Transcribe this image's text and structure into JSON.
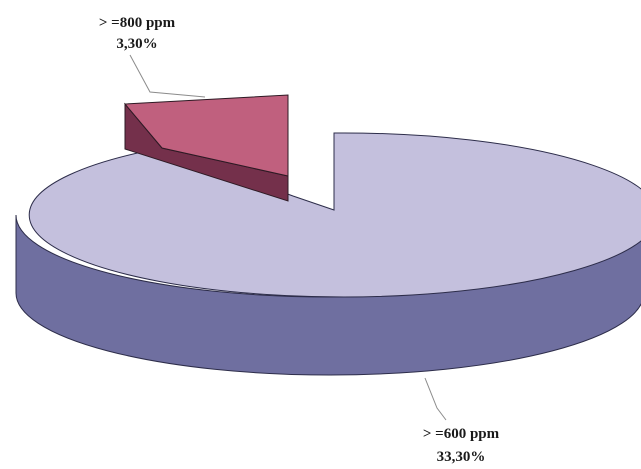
{
  "chart_data": {
    "type": "pie",
    "title": "",
    "three_d": true,
    "slices": [
      {
        "label": ">=600 ppm",
        "value_text": "33,30%",
        "value": 33.3,
        "color": "#c4c0dd",
        "side_color": "#6f6fa0",
        "exploded": false
      },
      {
        "label": ">=800 ppm",
        "value_text": "3,30%",
        "value": 3.3,
        "color": "#c0607e",
        "side_color": "#74304b",
        "exploded": true
      }
    ],
    "labels": [
      {
        "line1": "> =800 ppm",
        "line2": "3,30%"
      },
      {
        "line1": "> =600 ppm",
        "line2": "33,30%"
      }
    ],
    "legend": "none"
  }
}
